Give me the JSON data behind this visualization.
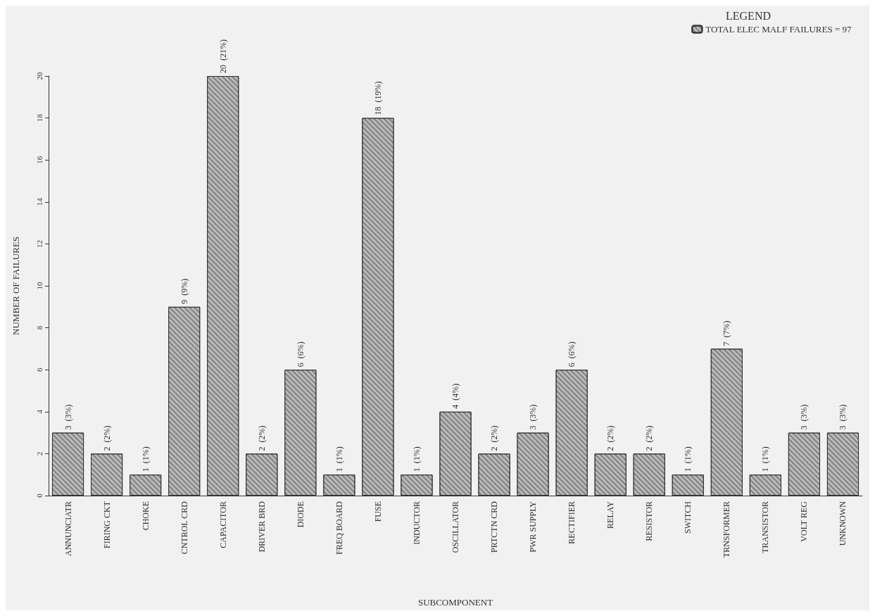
{
  "chart_data": {
    "type": "bar",
    "xlabel": "SUBCOMPONENT",
    "ylabel": "NUMBER OF FAILURES",
    "legend_title": "LEGEND",
    "legend": "top right",
    "grid": false,
    "categories": [
      "ANNUNCIATR",
      "FIRING CKT",
      "CHOKE",
      "CNTROL CRD",
      "CAPACITOR",
      "DRIVER BRD",
      "DIODE",
      "FREQ BOARD",
      "FUSE",
      "INDUCTOR",
      "OSCILLATOR",
      "PRTCTN CRD",
      "PWR SUPPLY",
      "RECTIFIER",
      "RELAY",
      "RESISTOR",
      "SWITCH",
      "TRNSFORMER",
      "TRANSISTOR",
      "VOLT REG",
      "UNKNOWN"
    ],
    "ylim": [
      0,
      20
    ],
    "yticks": [
      0,
      2,
      4,
      6,
      8,
      10,
      12,
      14,
      16,
      18,
      20
    ],
    "series": [
      {
        "name": "TOTAL ELEC MALF FAILURES = 97",
        "color": "#8c8c8c",
        "values": [
          3,
          2,
          1,
          9,
          20,
          2,
          6,
          1,
          18,
          1,
          4,
          2,
          3,
          6,
          2,
          2,
          1,
          7,
          1,
          3,
          3
        ],
        "value_labels": [
          "3  (3%)",
          "2  (2%)",
          "1  (1%)",
          "9  (9%)",
          "20  (21%)",
          "2  (2%)",
          "6  (6%)",
          "1  (1%)",
          "18  (19%)",
          "1  (1%)",
          "4  (4%)",
          "2  (2%)",
          "3  (3%)",
          "6  (6%)",
          "2  (2%)",
          "2  (2%)",
          "1  (1%)",
          "7  (7%)",
          "1  (1%)",
          "3  (3%)",
          "3  (3%)"
        ]
      }
    ]
  }
}
